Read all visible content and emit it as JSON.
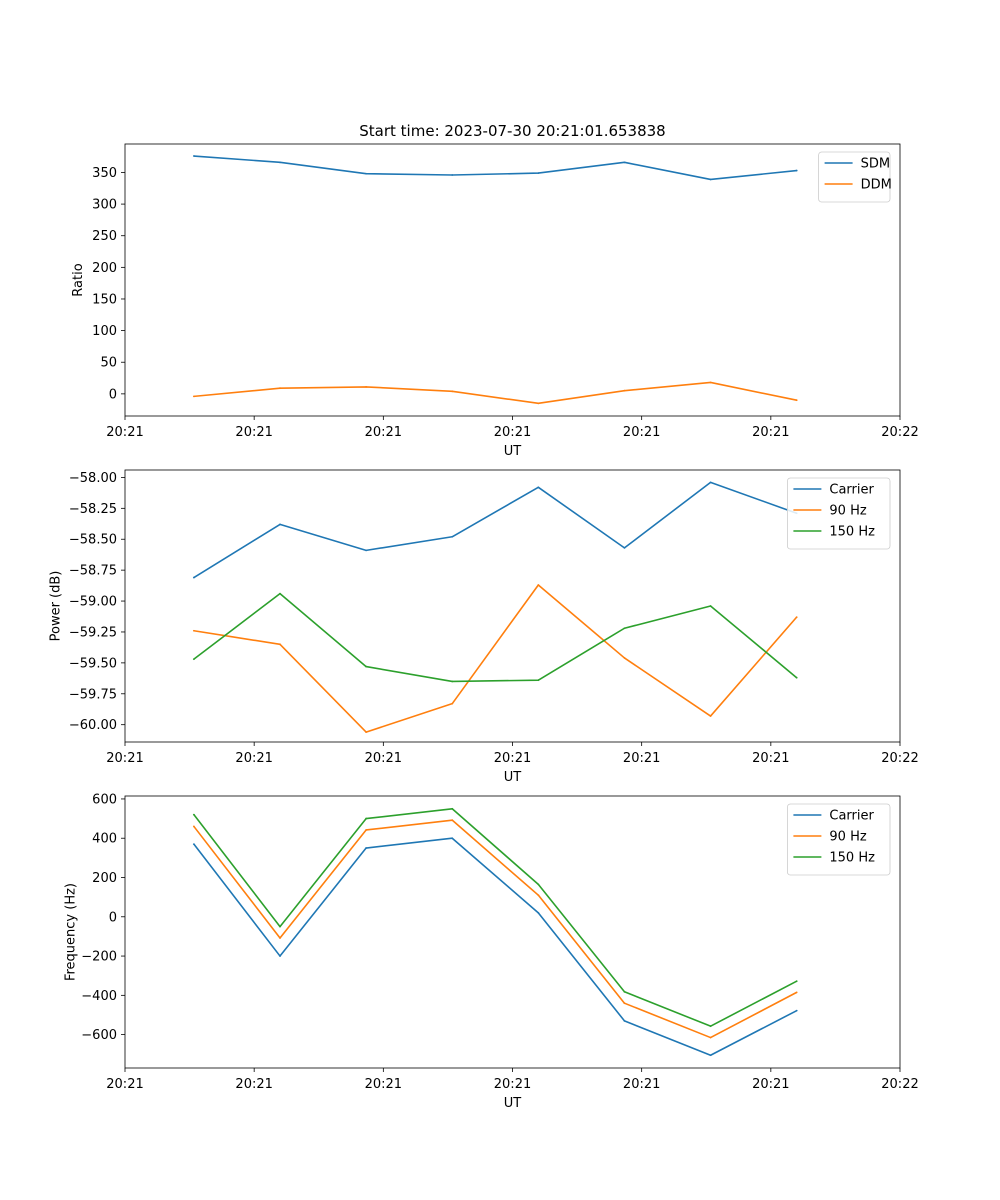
{
  "chart_data": [
    {
      "type": "line",
      "title": "Start time: 2023-07-30 20:21:01.653838",
      "xlabel": "UT",
      "ylabel": "Ratio",
      "x": [
        1,
        2,
        3,
        4,
        5,
        6,
        7,
        8
      ],
      "xlim": [
        0.2,
        9.2
      ],
      "x_ticks": [
        0.2,
        1.7,
        3.2,
        4.7,
        6.2,
        7.7,
        9.2
      ],
      "x_tick_labels": [
        "20:21",
        "20:21",
        "20:21",
        "20:21",
        "20:21",
        "20:21",
        "20:22"
      ],
      "ylim": [
        -35,
        395
      ],
      "y_ticks": [
        0,
        50,
        100,
        150,
        200,
        250,
        300,
        350
      ],
      "y_tick_labels": [
        "0",
        "50",
        "100",
        "150",
        "200",
        "250",
        "300",
        "350"
      ],
      "legend_loc": "upper right",
      "series": [
        {
          "name": "SDM",
          "color": "#1f77b4",
          "values": [
            376,
            366,
            348,
            346,
            349,
            366,
            339,
            353
          ]
        },
        {
          "name": "DDM",
          "color": "#ff7f0e",
          "values": [
            -4,
            9,
            11,
            4,
            -15,
            5,
            18,
            -10
          ]
        }
      ]
    },
    {
      "type": "line",
      "title": "",
      "xlabel": "UT",
      "ylabel": "Power (dB)",
      "x": [
        1,
        2,
        3,
        4,
        5,
        6,
        7,
        8
      ],
      "xlim": [
        0.2,
        9.2
      ],
      "x_ticks": [
        0.2,
        1.7,
        3.2,
        4.7,
        6.2,
        7.7,
        9.2
      ],
      "x_tick_labels": [
        "20:21",
        "20:21",
        "20:21",
        "20:21",
        "20:21",
        "20:21",
        "20:22"
      ],
      "ylim": [
        -60.14,
        -57.94
      ],
      "y_ticks": [
        -60.0,
        -59.75,
        -59.5,
        -59.25,
        -59.0,
        -58.75,
        -58.5,
        -58.25,
        -58.0
      ],
      "y_tick_labels": [
        "−60.00",
        "−59.75",
        "−59.50",
        "−59.25",
        "−59.00",
        "−58.75",
        "−58.50",
        "−58.25",
        "−58.00"
      ],
      "legend_loc": "upper right",
      "series": [
        {
          "name": "Carrier",
          "color": "#1f77b4",
          "values": [
            -58.81,
            -58.38,
            -58.59,
            -58.48,
            -58.08,
            -58.57,
            -58.04,
            -58.29
          ]
        },
        {
          "name": "90 Hz",
          "color": "#ff7f0e",
          "values": [
            -59.24,
            -59.35,
            -60.06,
            -59.83,
            -58.87,
            -59.46,
            -59.93,
            -59.13
          ]
        },
        {
          "name": "150 Hz",
          "color": "#2ca02c",
          "values": [
            -59.47,
            -58.94,
            -59.53,
            -59.65,
            -59.64,
            -59.22,
            -59.04,
            -59.62
          ]
        }
      ]
    },
    {
      "type": "line",
      "title": "",
      "xlabel": "UT",
      "ylabel": "Frequency (Hz)",
      "x": [
        1,
        2,
        3,
        4,
        5,
        6,
        7,
        8
      ],
      "xlim": [
        0.2,
        9.2
      ],
      "x_ticks": [
        0.2,
        1.7,
        3.2,
        4.7,
        6.2,
        7.7,
        9.2
      ],
      "x_tick_labels": [
        "20:21",
        "20:21",
        "20:21",
        "20:21",
        "20:21",
        "20:21",
        "20:22"
      ],
      "ylim": [
        -770,
        615
      ],
      "y_ticks": [
        -600,
        -400,
        -200,
        0,
        200,
        400,
        600
      ],
      "y_tick_labels": [
        "−600",
        "−400",
        "−200",
        "0",
        "200",
        "400",
        "600"
      ],
      "legend_loc": "upper right",
      "series": [
        {
          "name": "Carrier",
          "color": "#1f77b4",
          "values": [
            370,
            -200,
            350,
            400,
            20,
            -530,
            -705,
            -478
          ]
        },
        {
          "name": "90 Hz",
          "color": "#ff7f0e",
          "values": [
            460,
            -108,
            442,
            492,
            110,
            -440,
            -615,
            -385
          ]
        },
        {
          "name": "150 Hz",
          "color": "#2ca02c",
          "values": [
            520,
            -50,
            500,
            550,
            165,
            -382,
            -557,
            -328
          ]
        }
      ]
    }
  ]
}
